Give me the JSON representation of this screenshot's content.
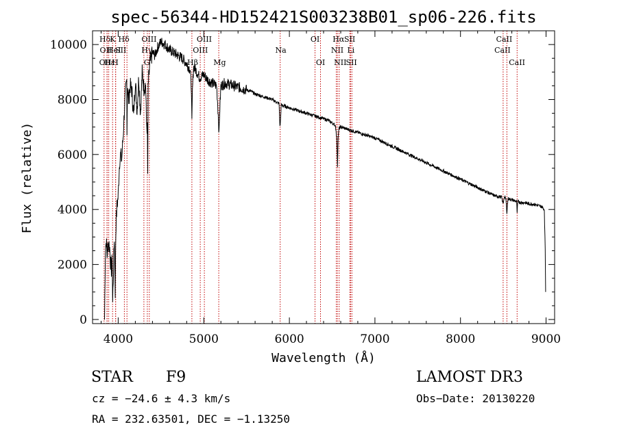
{
  "chart_data": {
    "type": "line",
    "title": "spec-56344-HD152421S003238B01_sp06-226.fits",
    "xlabel": "Wavelength (Å)",
    "ylabel": "Flux (relative)",
    "xlim": [
      3700,
      9100
    ],
    "ylim": [
      -150,
      10500
    ],
    "xticks": [
      4000,
      5000,
      6000,
      7000,
      8000,
      9000
    ],
    "yticks": [
      0,
      2000,
      4000,
      6000,
      8000,
      10000
    ],
    "grid": false,
    "series": [
      {
        "name": "flux",
        "x": [
          3840,
          3850,
          3860,
          3870,
          3880,
          3890,
          3900,
          3910,
          3920,
          3930,
          3935,
          3945,
          3955,
          3965,
          3970,
          3975,
          3985,
          4000,
          4010,
          4020,
          4030,
          4040,
          4050,
          4060,
          4070,
          4080,
          4090,
          4100,
          4102,
          4110,
          4120,
          4140,
          4160,
          4180,
          4200,
          4220,
          4240,
          4260,
          4280,
          4300,
          4320,
          4330,
          4340,
          4345,
          4350,
          4370,
          4400,
          4430,
          4460,
          4500,
          4550,
          4600,
          4650,
          4700,
          4750,
          4800,
          4840,
          4855,
          4861,
          4867,
          4880,
          4920,
          4950,
          5000,
          5050,
          5100,
          5150,
          5172,
          5178,
          5185,
          5200,
          5250,
          5300,
          5350,
          5400,
          5450,
          5500,
          5550,
          5600,
          5650,
          5700,
          5750,
          5800,
          5850,
          5880,
          5890,
          5896,
          5905,
          5950,
          6000,
          6050,
          6100,
          6150,
          6200,
          6250,
          6300,
          6350,
          6400,
          6450,
          6500,
          6540,
          6555,
          6563,
          6570,
          6580,
          6600,
          6650,
          6700,
          6750,
          6800,
          6850,
          6900,
          6950,
          7000,
          7100,
          7200,
          7300,
          7400,
          7500,
          7600,
          7700,
          7800,
          7900,
          8000,
          8100,
          8200,
          8300,
          8400,
          8480,
          8498,
          8510,
          8530,
          8542,
          8555,
          8600,
          8655,
          8662,
          8670,
          8700,
          8750,
          8800,
          8850,
          8900,
          8950,
          8980,
          8990,
          8995
        ],
        "values": [
          0,
          2500,
          2900,
          2300,
          2700,
          2800,
          2600,
          2100,
          1800,
          2200,
          600,
          1900,
          3000,
          1000,
          2800,
          3500,
          4100,
          4500,
          5400,
          5900,
          6000,
          5800,
          6300,
          6800,
          7500,
          8000,
          8400,
          8700,
          7000,
          8600,
          7900,
          8500,
          8300,
          7400,
          8700,
          7600,
          8800,
          7500,
          9000,
          8400,
          8600,
          7200,
          6900,
          5300,
          8500,
          9300,
          9700,
          9600,
          9900,
          10100,
          10000,
          9800,
          9700,
          9600,
          9500,
          9300,
          9100,
          8400,
          7100,
          8300,
          9200,
          9000,
          8800,
          8900,
          8700,
          8600,
          8500,
          7300,
          6700,
          7500,
          8500,
          8600,
          8550,
          8500,
          8450,
          8400,
          8350,
          8300,
          8200,
          8150,
          8100,
          8050,
          8000,
          7900,
          7850,
          7000,
          7200,
          7800,
          7750,
          7700,
          7650,
          7600,
          7550,
          7500,
          7450,
          7400,
          7350,
          7300,
          7250,
          7150,
          7050,
          6500,
          5600,
          6600,
          6950,
          7000,
          6950,
          6900,
          6850,
          6800,
          6750,
          6700,
          6650,
          6600,
          6450,
          6300,
          6150,
          6000,
          5850,
          5700,
          5550,
          5400,
          5250,
          5100,
          4950,
          4800,
          4650,
          4500,
          4450,
          4200,
          4450,
          4400,
          3900,
          4400,
          4350,
          4300,
          3900,
          4300,
          4250,
          4250,
          4200,
          4200,
          4150,
          4100,
          4000,
          2500,
          1000
        ]
      }
    ],
    "lines": [
      {
        "wl": 3835,
        "label": "Hδ",
        "row": 1,
        "tx": 3845
      },
      {
        "wl": 3870,
        "label": "OII",
        "row": 2,
        "tx": 3855
      },
      {
        "wl": 3870,
        "label": "OII",
        "row": 3,
        "tx": 3848
      },
      {
        "wl": 3889,
        "label": "Hε",
        "row": 3,
        "tx": 3898
      },
      {
        "wl": 3934,
        "label": "K",
        "row": 1,
        "tx": 3935
      },
      {
        "wl": 3969,
        "label": "H",
        "row": 3,
        "tx": 3965
      },
      {
        "wl": 3970,
        "label": "HeI",
        "row": 2,
        "tx": 3950
      },
      {
        "wl": 4102,
        "label": "Hδ",
        "row": 1,
        "tx": 4065
      },
      {
        "wl": 4072,
        "label": "SII",
        "row": 2,
        "tx": 4030
      },
      {
        "wl": 4300,
        "label": "G",
        "row": 3,
        "tx": 4335
      },
      {
        "wl": 4340,
        "label": "Hγ",
        "row": 2,
        "tx": 4335
      },
      {
        "wl": 4363,
        "label": "OIII",
        "row": 1,
        "tx": 4360
      },
      {
        "wl": 4861,
        "label": "Hβ",
        "row": 3,
        "tx": 4870
      },
      {
        "wl": 4959,
        "label": "OIII",
        "row": 2,
        "tx": 4960
      },
      {
        "wl": 5007,
        "label": "OIII",
        "row": 1,
        "tx": 5005
      },
      {
        "wl": 5175,
        "label": "Mg",
        "row": 3,
        "tx": 5185
      },
      {
        "wl": 5893,
        "label": "Na",
        "row": 2,
        "tx": 5900
      },
      {
        "wl": 6300,
        "label": "OI",
        "row": 1,
        "tx": 6300
      },
      {
        "wl": 6364,
        "label": "OI",
        "row": 3,
        "tx": 6365
      },
      {
        "wl": 6548,
        "label": "NII",
        "row": 2,
        "tx": 6560
      },
      {
        "wl": 6563,
        "label": "Hα",
        "row": 1,
        "tx": 6575
      },
      {
        "wl": 6583,
        "label": "NII",
        "row": 3,
        "tx": 6595
      },
      {
        "wl": 6707,
        "label": "Li",
        "row": 2,
        "tx": 6720
      },
      {
        "wl": 6716,
        "label": "SII",
        "row": 1,
        "tx": 6705
      },
      {
        "wl": 6731,
        "label": "SII",
        "row": 3,
        "tx": 6725
      },
      {
        "wl": 8498,
        "label": "CaII",
        "row": 2,
        "tx": 8490
      },
      {
        "wl": 8542,
        "label": "CaII",
        "row": 1,
        "tx": 8510
      },
      {
        "wl": 8662,
        "label": "CaII",
        "row": 3,
        "tx": 8660
      }
    ]
  },
  "info": {
    "object_class": "STAR",
    "subclass": "F9",
    "survey": "LAMOST DR3",
    "cz": "cz = −24.6 ± 4.3 km/s",
    "obs_date": "Obs−Date: 20130220",
    "coords": "RA = 232.63501, DEC =  −1.13250"
  }
}
